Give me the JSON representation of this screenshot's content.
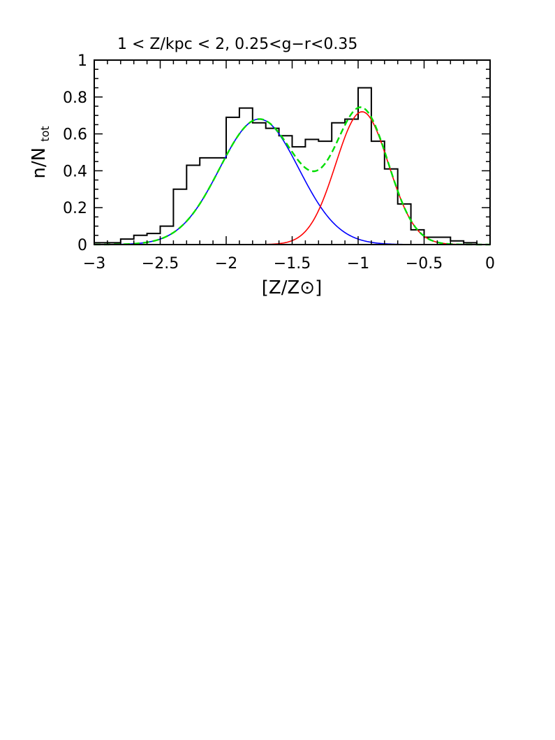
{
  "chart_data": {
    "type": "histogram",
    "title": "1 < Z/kpc < 2, 0.25<g−r<0.35",
    "xlabel": "[Z/Z⊙]",
    "ylabel_main": "n/N",
    "ylabel_sub": "tot",
    "xlim": [
      -3,
      0
    ],
    "ylim": [
      0,
      1
    ],
    "xticks": [
      -3,
      -2.5,
      -2,
      -1.5,
      -1,
      -0.5,
      0
    ],
    "xtick_labels": [
      "−3",
      "−2.5",
      "−2",
      "−1.5",
      "−1",
      "−0.5",
      "0"
    ],
    "yticks": [
      0,
      0.2,
      0.4,
      0.6,
      0.8,
      1
    ],
    "ytick_labels": [
      "0",
      "0.2",
      "0.4",
      "0.6",
      "0.8",
      "1"
    ],
    "grid": false,
    "histogram": {
      "bin_edges": [
        -3.0,
        -2.9,
        -2.8,
        -2.7,
        -2.6,
        -2.5,
        -2.4,
        -2.3,
        -2.2,
        -2.1,
        -2.0,
        -1.9,
        -1.8,
        -1.7,
        -1.6,
        -1.5,
        -1.4,
        -1.3,
        -1.2,
        -1.1,
        -1.0,
        -0.9,
        -0.8,
        -0.7,
        -0.6,
        -0.5,
        -0.4,
        -0.3,
        -0.2,
        -0.1,
        0.0
      ],
      "counts": [
        0.01,
        0.01,
        0.03,
        0.05,
        0.06,
        0.1,
        0.3,
        0.43,
        0.47,
        0.47,
        0.69,
        0.74,
        0.66,
        0.63,
        0.59,
        0.53,
        0.57,
        0.56,
        0.66,
        0.68,
        0.85,
        0.56,
        0.41,
        0.22,
        0.08,
        0.04,
        0.04,
        0.02,
        0.01,
        0.0
      ],
      "color": "#000000"
    },
    "components": [
      {
        "mean": -1.75,
        "sigma": 0.3,
        "amplitude": 0.68,
        "color": "#0000ff",
        "style": "solid"
      },
      {
        "mean": -0.97,
        "sigma": 0.2,
        "amplitude": 0.72,
        "color": "#ff0000",
        "style": "solid"
      }
    ],
    "sum_curve": {
      "color": "#00dd00",
      "style": "dashed"
    }
  }
}
